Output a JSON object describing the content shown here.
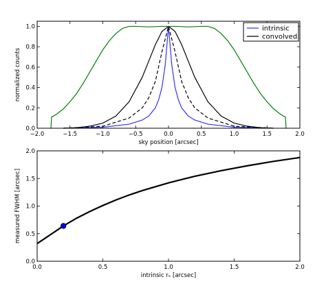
{
  "chart_data": [
    {
      "type": "line",
      "xlabel": "sky position [arcsec]",
      "ylabel": "normalized counts",
      "xlim": [
        -2.0,
        2.0
      ],
      "ylim": [
        0.0,
        1.05
      ],
      "xticks": [
        "−2.0",
        "−1.5",
        "−1.0",
        "−0.5",
        "0.0",
        "0.5",
        "1.0",
        "1.5",
        "2.0"
      ],
      "yticks": [
        "0.0",
        "0.2",
        "0.4",
        "0.6",
        "0.8",
        "1.0"
      ],
      "grid": false,
      "legend_position": "top-right",
      "series": [
        {
          "name": "intrinsic",
          "color": "#3333ff",
          "style": "solid",
          "x": [
            -1.6,
            -1.0,
            -0.6,
            -0.4,
            -0.3,
            -0.2,
            -0.15,
            -0.1,
            -0.05,
            0.0,
            0.05,
            0.1,
            0.15,
            0.2,
            0.3,
            0.4,
            0.6,
            1.0,
            1.6
          ],
          "y": [
            0.0,
            0.01,
            0.04,
            0.08,
            0.12,
            0.2,
            0.28,
            0.4,
            0.62,
            1.0,
            0.62,
            0.4,
            0.28,
            0.2,
            0.12,
            0.08,
            0.04,
            0.01,
            0.0
          ]
        },
        {
          "name": "convolved",
          "color": "#000000",
          "style": "solid",
          "x": [
            -1.6,
            -1.4,
            -1.2,
            -1.0,
            -0.8,
            -0.6,
            -0.4,
            -0.3,
            -0.2,
            -0.1,
            0.0,
            0.1,
            0.2,
            0.3,
            0.4,
            0.6,
            0.8,
            1.0,
            1.2,
            1.4,
            1.6
          ],
          "y": [
            0.0,
            0.005,
            0.02,
            0.05,
            0.12,
            0.26,
            0.5,
            0.66,
            0.82,
            0.95,
            1.0,
            0.95,
            0.82,
            0.66,
            0.5,
            0.26,
            0.12,
            0.05,
            0.02,
            0.005,
            0.0
          ]
        },
        {
          "color": "#000000",
          "style": "dashed",
          "x": [
            -1.6,
            -1.0,
            -0.6,
            -0.4,
            -0.3,
            -0.2,
            -0.1,
            0.0,
            0.1,
            0.2,
            0.3,
            0.4,
            0.6,
            1.0,
            1.6
          ],
          "y": [
            0.0,
            0.02,
            0.1,
            0.2,
            0.3,
            0.46,
            0.75,
            1.0,
            0.75,
            0.46,
            0.3,
            0.2,
            0.1,
            0.02,
            0.0
          ]
        },
        {
          "color": "#008000",
          "style": "solid",
          "x": [
            -1.8,
            -1.79,
            -1.78,
            -1.75,
            -1.7,
            -1.6,
            -1.5,
            -1.4,
            -1.3,
            -1.2,
            -1.1,
            -1.0,
            -0.9,
            -0.8,
            -0.7,
            -0.6,
            -0.55,
            -0.5,
            -0.3,
            -0.1,
            0.1,
            0.3,
            0.5,
            0.55,
            0.6,
            0.7,
            0.8,
            0.9,
            1.0,
            1.1,
            1.2,
            1.3,
            1.4,
            1.5,
            1.6,
            1.7,
            1.75,
            1.78,
            1.79,
            1.8
          ],
          "y": [
            0.0,
            0.0,
            0.11,
            0.12,
            0.14,
            0.19,
            0.26,
            0.34,
            0.44,
            0.55,
            0.66,
            0.77,
            0.86,
            0.93,
            0.98,
            1.0,
            1.0,
            1.0,
            0.995,
            1.0,
            1.0,
            0.995,
            1.0,
            1.0,
            1.0,
            0.98,
            0.93,
            0.86,
            0.77,
            0.66,
            0.55,
            0.44,
            0.34,
            0.26,
            0.19,
            0.14,
            0.12,
            0.11,
            0.0,
            0.0
          ]
        }
      ]
    },
    {
      "type": "line",
      "xlabel": "intrinsic rₑ [arcsec]",
      "ylabel": "measured FWHM [arcsec]",
      "xlim": [
        0.0,
        2.0
      ],
      "ylim": [
        0.0,
        2.0
      ],
      "xticks": [
        "0.0",
        "0.5",
        "1.0",
        "1.5",
        "2.0"
      ],
      "yticks": [
        "0.0",
        "0.5",
        "1.0",
        "1.5",
        "2.0"
      ],
      "grid": false,
      "series": [
        {
          "color": "#000000",
          "style": "solid",
          "x": [
            0.0,
            0.05,
            0.1,
            0.15,
            0.2,
            0.3,
            0.4,
            0.5,
            0.6,
            0.7,
            0.8,
            0.9,
            1.0,
            1.2,
            1.4,
            1.6,
            1.8,
            2.0
          ],
          "y": [
            0.32,
            0.4,
            0.48,
            0.56,
            0.64,
            0.78,
            0.9,
            1.01,
            1.11,
            1.2,
            1.28,
            1.35,
            1.42,
            1.54,
            1.64,
            1.73,
            1.81,
            1.88
          ]
        }
      ],
      "markers": [
        {
          "x": 0.2,
          "y": 0.64,
          "color": "#0000ff"
        }
      ]
    }
  ]
}
